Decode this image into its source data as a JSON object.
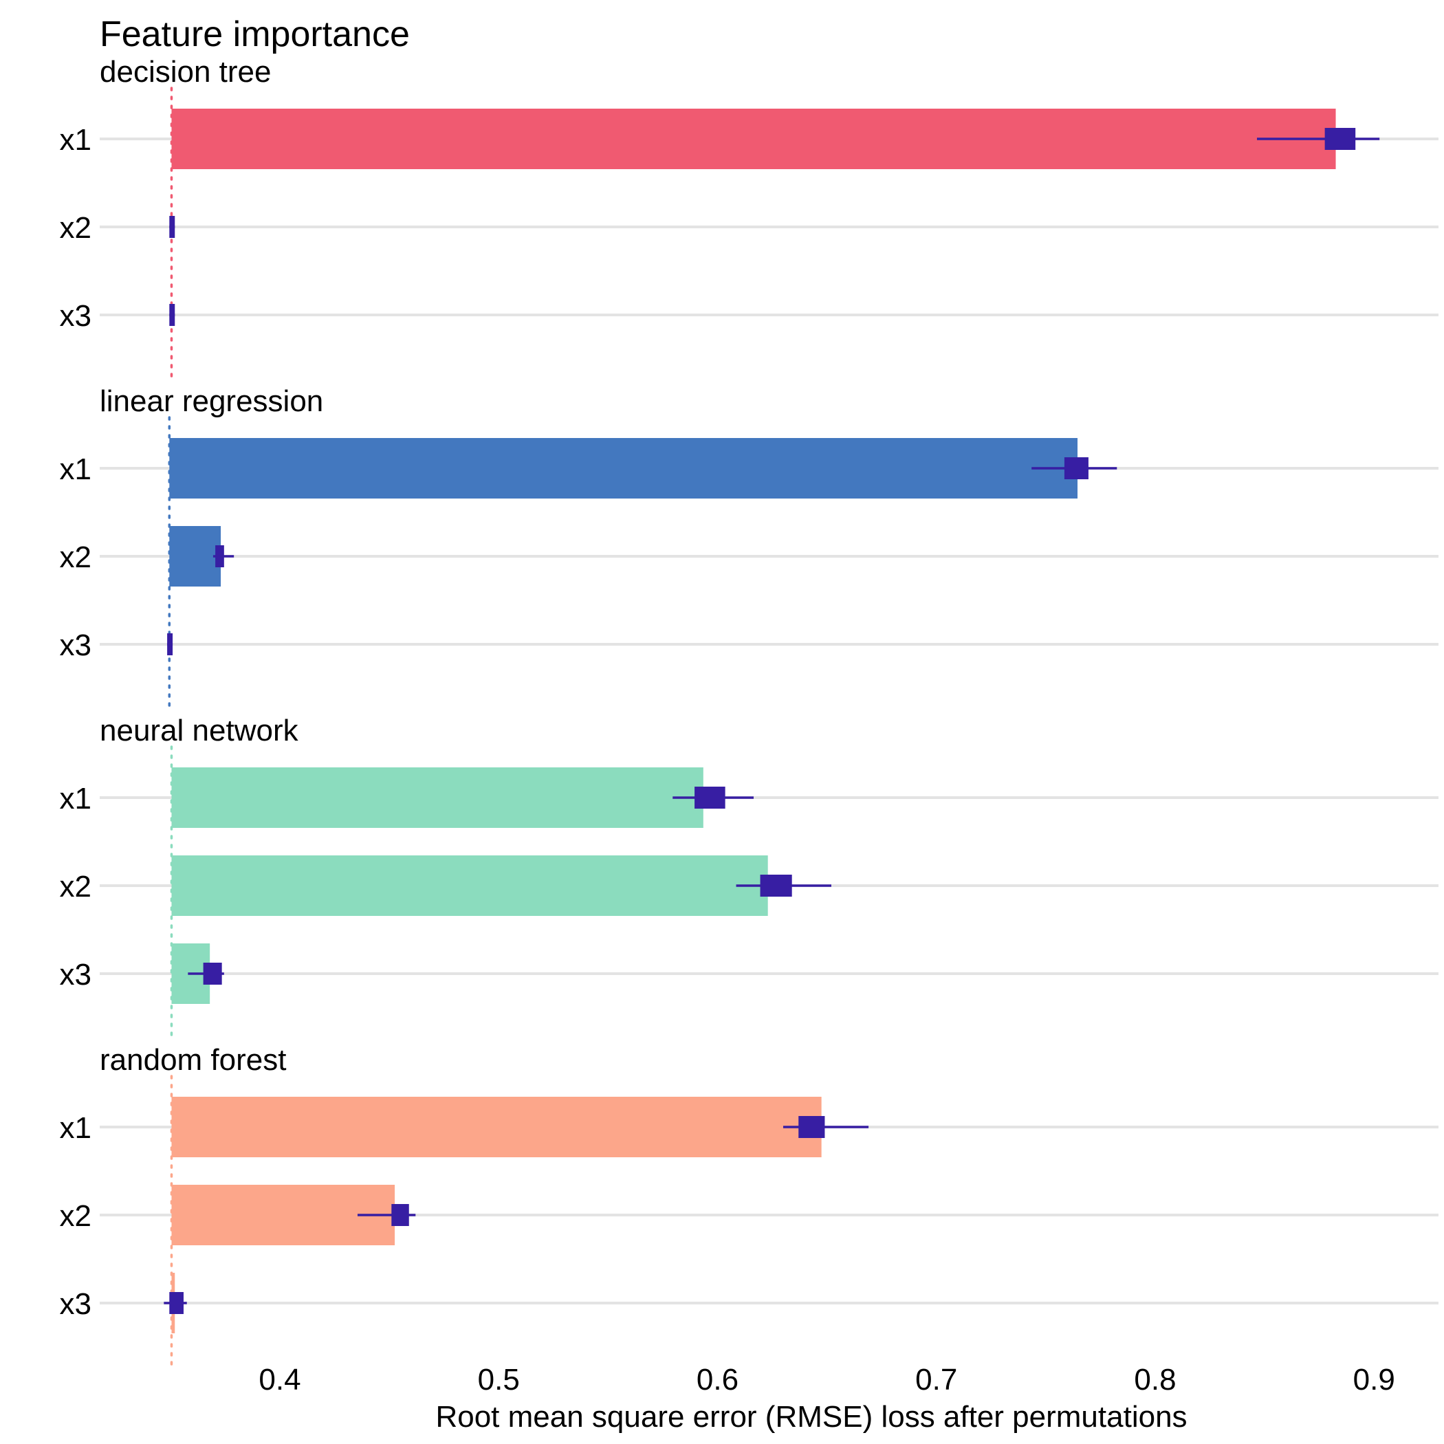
{
  "chart_data": {
    "type": "bar",
    "title": "Feature importance",
    "xlabel": "Root mean square error (RMSE) loss after permutations",
    "ylabel": "",
    "xlim": [
      0.325,
      0.93
    ],
    "xticks": [
      "0.4",
      "0.5",
      "0.6",
      "0.7",
      "0.8",
      "0.9"
    ],
    "grid": true,
    "legend": "none",
    "error_bar_color": "#371ea3",
    "panels": [
      {
        "name": "decision tree",
        "color": "#f05a71",
        "baseline": 0.3505,
        "features": [
          {
            "label": "x1",
            "value": 0.8825,
            "box_low": 0.8775,
            "box_high": 0.8915,
            "whisker_low": 0.8465,
            "whisker_high": 0.9025
          },
          {
            "label": "x2",
            "value": 0.3505,
            "box_low": 0.3495,
            "box_high": 0.352,
            "whisker_low": 0.3495,
            "whisker_high": 0.352
          },
          {
            "label": "x3",
            "value": 0.3505,
            "box_low": 0.3495,
            "box_high": 0.352,
            "whisker_low": 0.3495,
            "whisker_high": 0.352
          }
        ]
      },
      {
        "name": "linear regression",
        "color": "#4378bf",
        "baseline": 0.3495,
        "features": [
          {
            "label": "x1",
            "value": 0.7645,
            "box_low": 0.7585,
            "box_high": 0.7695,
            "whisker_low": 0.7435,
            "whisker_high": 0.7825
          },
          {
            "label": "x2",
            "value": 0.373,
            "box_low": 0.3705,
            "box_high": 0.3745,
            "whisker_low": 0.3695,
            "whisker_high": 0.379
          },
          {
            "label": "x3",
            "value": 0.3495,
            "box_low": 0.3485,
            "box_high": 0.351,
            "whisker_low": 0.3485,
            "whisker_high": 0.351
          }
        ]
      },
      {
        "name": "neural network",
        "color": "#8bdcbe",
        "baseline": 0.3505,
        "features": [
          {
            "label": "x1",
            "value": 0.5935,
            "box_low": 0.5895,
            "box_high": 0.6035,
            "whisker_low": 0.5795,
            "whisker_high": 0.6165
          },
          {
            "label": "x2",
            "value": 0.623,
            "box_low": 0.6195,
            "box_high": 0.634,
            "whisker_low": 0.6085,
            "whisker_high": 0.652
          },
          {
            "label": "x3",
            "value": 0.368,
            "box_low": 0.365,
            "box_high": 0.3735,
            "whisker_low": 0.358,
            "whisker_high": 0.3745
          }
        ]
      },
      {
        "name": "random forest",
        "color": "#fca68a",
        "baseline": 0.3505,
        "features": [
          {
            "label": "x1",
            "value": 0.6475,
            "box_low": 0.637,
            "box_high": 0.649,
            "whisker_low": 0.63,
            "whisker_high": 0.669
          },
          {
            "label": "x2",
            "value": 0.4525,
            "box_low": 0.451,
            "box_high": 0.459,
            "whisker_low": 0.4355,
            "whisker_high": 0.462
          },
          {
            "label": "x3",
            "value": 0.352,
            "box_low": 0.3495,
            "box_high": 0.356,
            "whisker_low": 0.347,
            "whisker_high": 0.3575
          }
        ]
      }
    ]
  }
}
